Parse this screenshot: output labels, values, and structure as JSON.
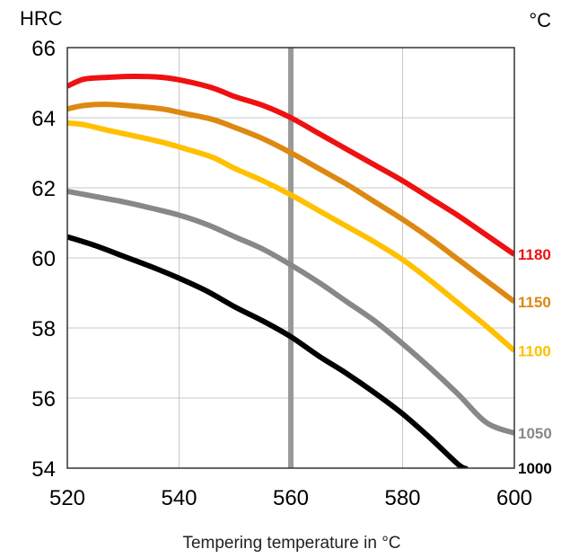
{
  "chart_data": {
    "type": "line",
    "ylabel": "HRC",
    "unit_label": "°C",
    "xlabel": "Tempering temperature in °C",
    "xlim": [
      520,
      600
    ],
    "ylim": [
      54,
      66
    ],
    "xticks": [
      520,
      540,
      560,
      580,
      600
    ],
    "yticks": [
      54,
      56,
      58,
      60,
      62,
      64,
      66
    ],
    "grid": true,
    "reference_line_x": 560,
    "reference_line_color": "#999999",
    "series": [
      {
        "name": "1180",
        "color": "#ee1111",
        "x": [
          520,
          523,
          527,
          532,
          537,
          541,
          546,
          550,
          555,
          560,
          565,
          570,
          575,
          580,
          585,
          590,
          595,
          600
        ],
        "y": [
          64.9,
          65.1,
          65.15,
          65.18,
          65.15,
          65.05,
          64.85,
          64.6,
          64.35,
          64.0,
          63.55,
          63.1,
          62.65,
          62.2,
          61.7,
          61.2,
          60.65,
          60.1
        ]
      },
      {
        "name": "1150",
        "color": "#dd8811",
        "x": [
          520,
          523,
          527,
          532,
          537,
          541,
          546,
          550,
          555,
          560,
          565,
          570,
          575,
          580,
          585,
          590,
          595,
          600
        ],
        "y": [
          64.25,
          64.35,
          64.38,
          64.33,
          64.25,
          64.12,
          63.95,
          63.72,
          63.4,
          63.0,
          62.55,
          62.1,
          61.6,
          61.1,
          60.55,
          59.95,
          59.35,
          58.75
        ]
      },
      {
        "name": "1100",
        "color": "#ffc000",
        "x": [
          520,
          523,
          527,
          532,
          537,
          541,
          546,
          550,
          555,
          560,
          565,
          570,
          575,
          580,
          585,
          590,
          595,
          600
        ],
        "y": [
          63.85,
          63.8,
          63.65,
          63.48,
          63.3,
          63.12,
          62.87,
          62.55,
          62.2,
          61.8,
          61.35,
          60.9,
          60.45,
          59.95,
          59.35,
          58.7,
          58.05,
          57.35
        ]
      },
      {
        "name": "1050",
        "color": "#888888",
        "x": [
          520,
          525,
          530,
          535,
          540,
          545,
          550,
          555,
          560,
          565,
          570,
          575,
          580,
          585,
          590,
          595,
          600
        ],
        "y": [
          61.9,
          61.75,
          61.6,
          61.42,
          61.22,
          60.95,
          60.6,
          60.25,
          59.8,
          59.3,
          58.75,
          58.2,
          57.55,
          56.85,
          56.1,
          55.3,
          55.0
        ]
      },
      {
        "name": "1000",
        "color": "#000000",
        "x": [
          520,
          525,
          530,
          535,
          540,
          545,
          550,
          555,
          560,
          565,
          570,
          575,
          580,
          585,
          590,
          591.5
        ],
        "y": [
          60.6,
          60.35,
          60.05,
          59.75,
          59.42,
          59.05,
          58.6,
          58.2,
          57.75,
          57.2,
          56.7,
          56.15,
          55.55,
          54.85,
          54.1,
          53.98
        ]
      }
    ]
  }
}
